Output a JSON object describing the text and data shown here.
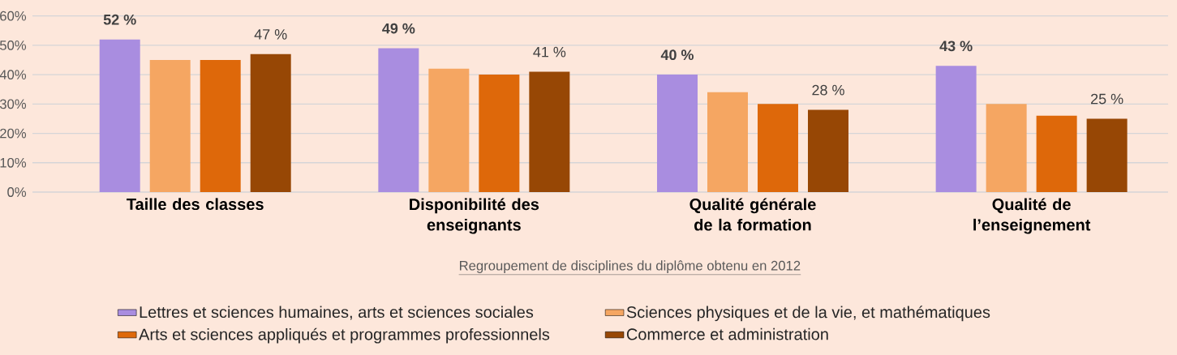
{
  "chart_data": {
    "type": "bar",
    "xlabel": "Regroupement de disciplines du diplôme obtenu en 2012",
    "categories": [
      "Taille des classes",
      "Disponibilité des enseignants",
      "Qualité générale de la formation",
      "Qualité de l’enseignement"
    ],
    "series": [
      {
        "name": "Lettres et sciences humaines, arts et sciences sociales",
        "color": "#a98de0",
        "values": [
          52,
          49,
          40,
          43
        ],
        "value_labels": [
          "52 %",
          "49 %",
          "40 %",
          "43 %"
        ]
      },
      {
        "name": "Sciences physiques et de la vie, et mathématiques",
        "color": "#f5a662",
        "values": [
          45,
          42,
          34,
          30
        ],
        "value_labels": [
          null,
          null,
          null,
          null
        ]
      },
      {
        "name": "Arts et sciences appliqués et programmes professionnels",
        "color": "#de680a",
        "values": [
          45,
          40,
          30,
          26
        ],
        "value_labels": [
          null,
          null,
          null,
          null
        ]
      },
      {
        "name": "Commerce et administration",
        "color": "#974705",
        "values": [
          47,
          41,
          28,
          25
        ],
        "value_labels": [
          "47 %",
          "41 %",
          "28 %",
          "25 %"
        ]
      }
    ],
    "ylim": [
      0,
      60
    ],
    "yticks": [
      {
        "value": 0,
        "label": "0%"
      },
      {
        "value": 10,
        "label": "10%"
      },
      {
        "value": 20,
        "label": "20%"
      },
      {
        "value": 30,
        "label": "30%"
      },
      {
        "value": 40,
        "label": "40%"
      },
      {
        "value": 50,
        "label": "50%"
      },
      {
        "value": 60,
        "label": "60%"
      }
    ],
    "grid": "y",
    "legend": "bottom"
  }
}
